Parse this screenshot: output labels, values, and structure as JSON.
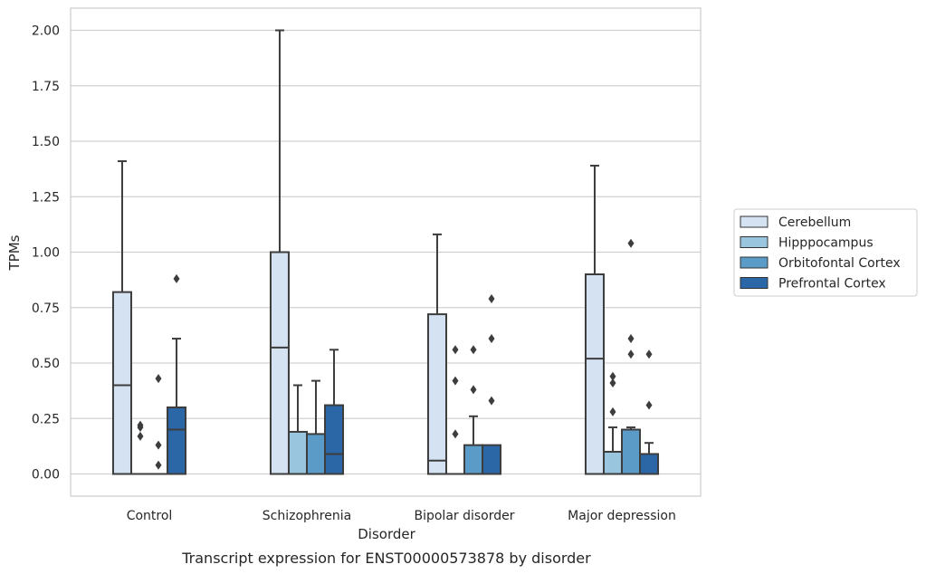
{
  "chart_data": {
    "type": "box",
    "xlabel": "Disorder",
    "ylabel": "TPMs",
    "caption": "Transcript expression for ENST00000573878 by disorder",
    "ylim": [
      -0.1,
      2.1
    ],
    "yticks": [
      "0.00",
      "0.25",
      "0.50",
      "0.75",
      "1.00",
      "1.25",
      "1.50",
      "1.75",
      "2.00"
    ],
    "grid": "horizontal",
    "legend_position": "right",
    "categories": [
      "Control",
      "Schizophrenia",
      "Bipolar disorder",
      "Major depression"
    ],
    "series": [
      {
        "name": "Cerebellum",
        "color": "#d4e2f2",
        "boxes": [
          {
            "q1": 0,
            "median": 0.4,
            "q3": 0.82,
            "whisker_low": 0,
            "whisker_high": 1.41,
            "outliers": []
          },
          {
            "q1": 0,
            "median": 0.57,
            "q3": 1.0,
            "whisker_low": 0,
            "whisker_high": 2.0,
            "outliers": []
          },
          {
            "q1": 0,
            "median": 0.06,
            "q3": 0.72,
            "whisker_low": 0,
            "whisker_high": 1.08,
            "outliers": []
          },
          {
            "q1": 0,
            "median": 0.52,
            "q3": 0.9,
            "whisker_low": 0,
            "whisker_high": 1.39,
            "outliers": []
          }
        ]
      },
      {
        "name": "Hipppocampus",
        "color": "#9ac5df",
        "boxes": [
          {
            "q1": 0,
            "median": 0,
            "q3": 0,
            "whisker_low": 0,
            "whisker_high": 0,
            "outliers": [
              0.22,
              0.21,
              0.17
            ]
          },
          {
            "q1": 0,
            "median": 0,
            "q3": 0.19,
            "whisker_low": 0,
            "whisker_high": 0.4,
            "outliers": []
          },
          {
            "q1": 0,
            "median": 0,
            "q3": 0,
            "whisker_low": 0,
            "whisker_high": 0,
            "outliers": [
              0.56,
              0.42,
              0.18
            ]
          },
          {
            "q1": 0,
            "median": 0,
            "q3": 0.1,
            "whisker_low": 0,
            "whisker_high": 0.21,
            "outliers": [
              0.44,
              0.41,
              0.28
            ]
          }
        ]
      },
      {
        "name": "Orbitofontal Cortex",
        "color": "#5a9bc7",
        "boxes": [
          {
            "q1": 0,
            "median": 0,
            "q3": 0,
            "whisker_low": 0,
            "whisker_high": 0,
            "outliers": [
              0.43,
              0.13,
              0.04
            ]
          },
          {
            "q1": 0,
            "median": 0,
            "q3": 0.18,
            "whisker_low": 0,
            "whisker_high": 0.42,
            "outliers": []
          },
          {
            "q1": 0,
            "median": 0,
            "q3": 0.13,
            "whisker_low": 0,
            "whisker_high": 0.26,
            "outliers": [
              0.56,
              0.38
            ]
          },
          {
            "q1": 0,
            "median": 0,
            "q3": 0.2,
            "whisker_low": 0,
            "whisker_high": 0.21,
            "outliers": [
              1.04,
              0.61,
              0.54
            ]
          }
        ]
      },
      {
        "name": "Prefrontal Cortex",
        "color": "#2b67a6",
        "boxes": [
          {
            "q1": 0,
            "median": 0.2,
            "q3": 0.3,
            "whisker_low": 0,
            "whisker_high": 0.61,
            "outliers": [
              0.88
            ]
          },
          {
            "q1": 0,
            "median": 0.09,
            "q3": 0.31,
            "whisker_low": 0,
            "whisker_high": 0.56,
            "outliers": []
          },
          {
            "q1": 0,
            "median": 0,
            "q3": 0.13,
            "whisker_low": 0,
            "whisker_high": 0.13,
            "outliers": [
              0.79,
              0.61,
              0.33
            ]
          },
          {
            "q1": 0,
            "median": 0,
            "q3": 0.09,
            "whisker_low": 0,
            "whisker_high": 0.14,
            "outliers": [
              0.54,
              0.31
            ]
          }
        ]
      }
    ]
  }
}
